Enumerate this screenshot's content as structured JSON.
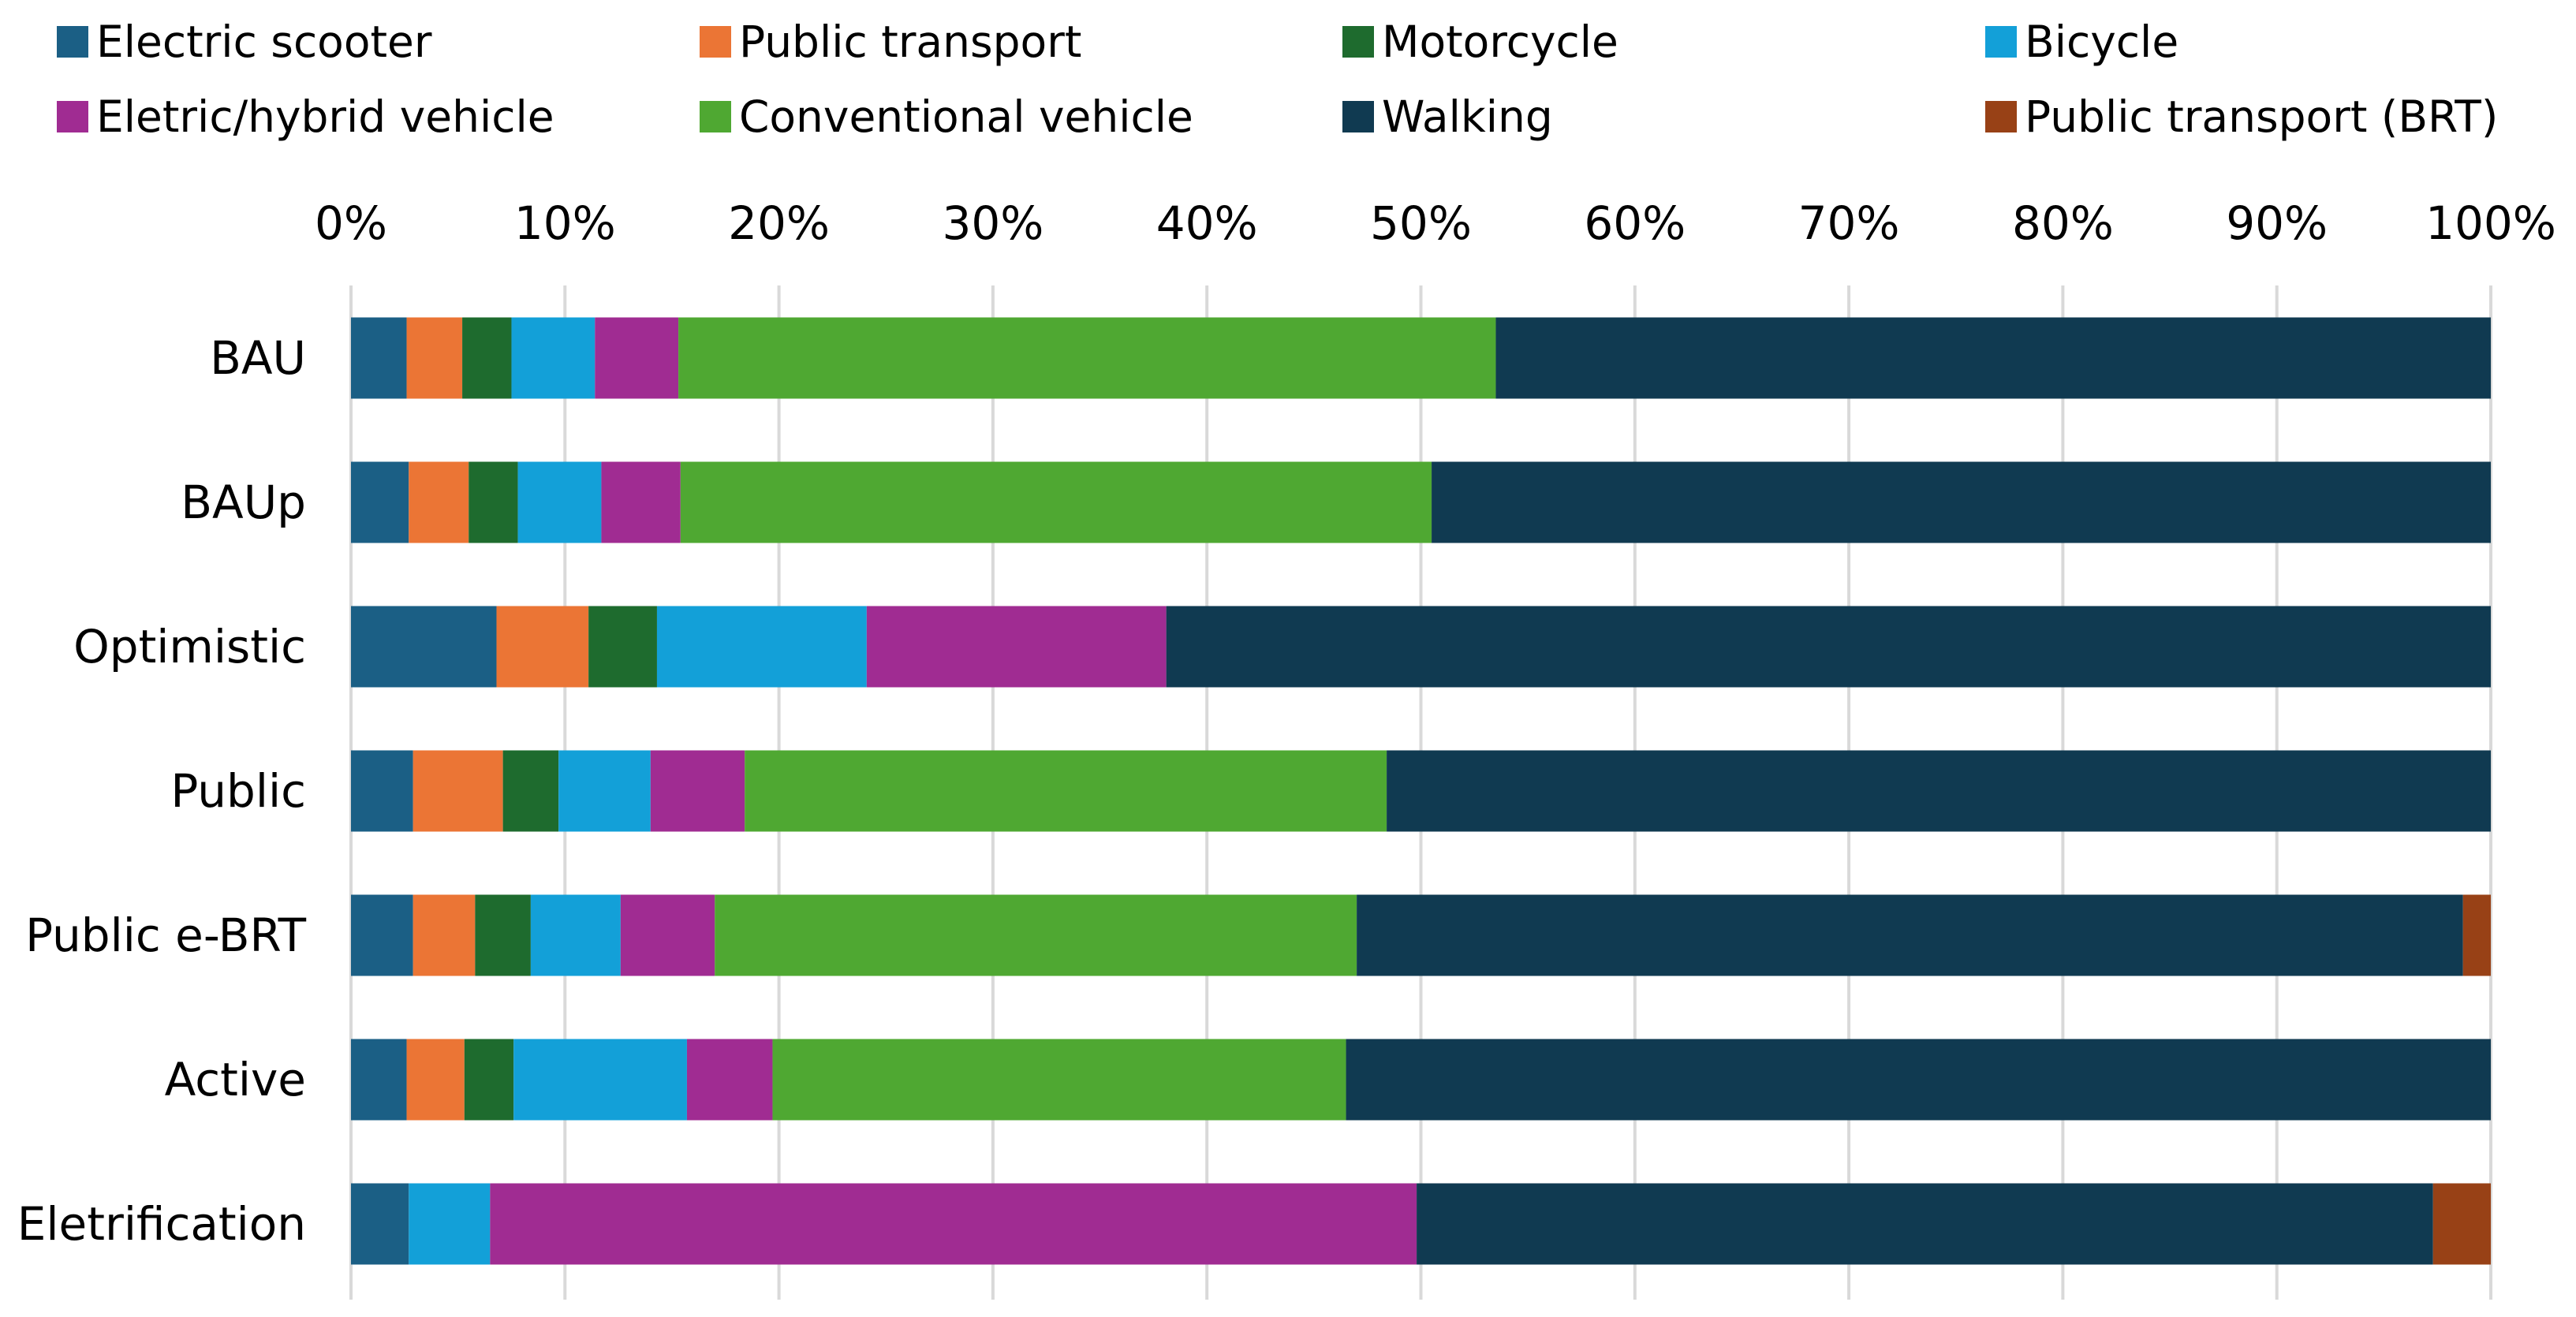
{
  "chart_data": {
    "type": "bar",
    "orientation": "horizontal",
    "stacked": true,
    "title": "",
    "xlabel": "",
    "ylabel": "",
    "xlim": [
      0,
      100
    ],
    "x_ticks": [
      "0%",
      "10%",
      "20%",
      "30%",
      "40%",
      "50%",
      "60%",
      "70%",
      "80%",
      "90%",
      "100%"
    ],
    "grid": "vertical",
    "legend_position": "top",
    "categories": [
      "BAU",
      "BAUp",
      "Optimistic",
      "Public",
      "Public e-BRT",
      "Active",
      "Eletrification"
    ],
    "series": [
      {
        "name": "Electric scooter",
        "color": "#1b5f85",
        "values": [
          2.6,
          2.7,
          6.8,
          2.9,
          2.9,
          2.6,
          2.7
        ]
      },
      {
        "name": "Public transport",
        "color": "#eb7535",
        "values": [
          2.6,
          2.8,
          4.3,
          4.2,
          2.9,
          2.7,
          0
        ]
      },
      {
        "name": "Motorcycle",
        "color": "#1e6b2e",
        "values": [
          2.3,
          2.3,
          3.2,
          2.6,
          2.6,
          2.3,
          0
        ]
      },
      {
        "name": "Bicycle",
        "color": "#13a0d8",
        "values": [
          3.9,
          3.9,
          9.8,
          4.3,
          4.2,
          8.1,
          3.8
        ]
      },
      {
        "name": "Eletric/hybrid vehicle",
        "color": "#a02c92",
        "values": [
          3.9,
          3.7,
          14.0,
          4.4,
          4.4,
          4.0,
          43.3
        ]
      },
      {
        "name": "Conventional vehicle",
        "color": "#4fa832",
        "values": [
          38.2,
          35.1,
          0,
          30.0,
          30.0,
          26.8,
          0
        ]
      },
      {
        "name": "Walking",
        "color": "#103a51",
        "values": [
          46.5,
          49.5,
          61.9,
          51.6,
          51.7,
          53.5,
          47.5
        ]
      },
      {
        "name": "Public transport (BRT)",
        "color": "#984116",
        "values": [
          0,
          0,
          0,
          0,
          1.3,
          0,
          2.7
        ]
      }
    ]
  }
}
